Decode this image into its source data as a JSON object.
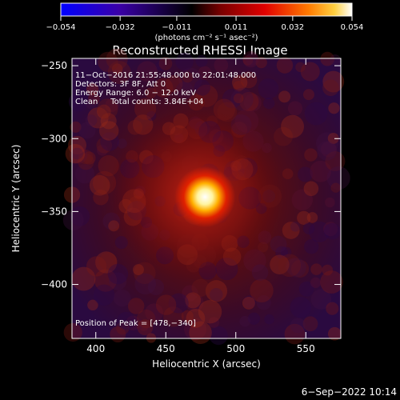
{
  "chart_data": {
    "type": "heatmap",
    "title": "Reconstructed RHESSI Image",
    "xlabel": "Heliocentric X (arcsec)",
    "ylabel": "Heliocentric Y (arcsec)",
    "xlim": [
      383,
      575
    ],
    "ylim": [
      -437,
      -245
    ],
    "x_ticks": [
      400,
      450,
      500,
      550
    ],
    "x_tick_labels": [
      "400",
      "450",
      "500",
      "550"
    ],
    "y_ticks": [
      -250,
      -300,
      -350,
      -400
    ],
    "y_tick_labels": [
      "−250",
      "−300",
      "−350",
      "−400"
    ],
    "colorbar": {
      "min": -0.054,
      "max": 0.054,
      "ticks": [
        -0.054,
        -0.032,
        -0.011,
        0.011,
        0.032,
        0.054
      ],
      "tick_labels": [
        "−0.054",
        "−0.032",
        "−0.011",
        "0.011",
        "0.032",
        "0.054"
      ],
      "unit_label": "(photons cm⁻² s⁻¹ asec⁻²)",
      "colormap": [
        "#0000ff",
        "#3a00a8",
        "#000000",
        "#7a0000",
        "#e00000",
        "#ff7a00",
        "#ffd040",
        "#ffffff"
      ]
    },
    "peak": {
      "x": 478,
      "y": -340,
      "value": 0.054
    },
    "annotations": [
      "11−Oct−2016 21:55:48.000 to 22:01:48.000",
      "Detectors: 3F 8F, Att 0",
      "Energy Range: 6.0 − 12.0 keV",
      "Clean     Total counts: 3.84E+04"
    ],
    "peak_annotation": "Position of Peak = [478,−340]"
  },
  "timestamp": "6−Sep−2022 10:14"
}
